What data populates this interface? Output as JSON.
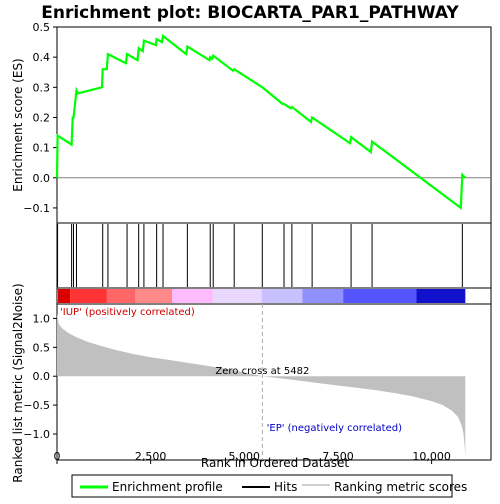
{
  "chart_data": [
    {
      "type": "line",
      "title": "Enrichment plot: BIOCARTA_PAR1_PATHWAY",
      "ylabel": "Enrichment score (ES)",
      "ylim": [
        -0.15,
        0.5
      ],
      "xlim": [
        0,
        11000
      ],
      "yticks": [
        "−0.1",
        "0.0",
        "0.1",
        "0.2",
        "0.3",
        "0.4",
        "0.5"
      ],
      "ytick_values": [
        -0.1,
        0.0,
        0.1,
        0.2,
        0.3,
        0.4,
        0.5
      ],
      "grid": false,
      "series": [
        {
          "name": "Enrichment profile",
          "color": "#00ff00",
          "x": [
            0,
            15,
            390,
            420,
            440,
            520,
            560,
            1200,
            1220,
            1330,
            1360,
            1840,
            1870,
            2150,
            2180,
            2290,
            2320,
            2640,
            2660,
            2800,
            2830,
            3450,
            3480,
            4070,
            4090,
            4140,
            4170,
            4700,
            4730,
            5480,
            6020,
            6060,
            6240,
            6270,
            6780,
            6810,
            7820,
            7850,
            8380,
            8410,
            10780,
            10820,
            10900
          ],
          "y": [
            0.0,
            0.14,
            0.11,
            0.2,
            0.2,
            0.29,
            0.28,
            0.3,
            0.36,
            0.36,
            0.41,
            0.38,
            0.41,
            0.39,
            0.43,
            0.42,
            0.455,
            0.44,
            0.46,
            0.45,
            0.47,
            0.41,
            0.435,
            0.39,
            0.4,
            0.395,
            0.405,
            0.355,
            0.36,
            0.3,
            0.245,
            0.245,
            0.23,
            0.235,
            0.185,
            0.2,
            0.115,
            0.135,
            0.085,
            0.12,
            -0.1,
            0.01,
            0.0
          ]
        }
      ]
    },
    {
      "type": "scatter",
      "name": "Hits",
      "hit_positions": [
        15,
        390,
        440,
        520,
        1220,
        1360,
        1870,
        2180,
        2320,
        2660,
        2830,
        3480,
        4090,
        4170,
        4730,
        5480,
        6060,
        6270,
        6810,
        7850,
        8410,
        10820
      ],
      "xlim": [
        0,
        11000
      ]
    },
    {
      "type": "heatmap",
      "name": "Ranked list colour bar",
      "colors": [
        "#dd0000",
        "#ff3333",
        "#ff6666",
        "#ff8888",
        "#ffbbff",
        "#e8d8ff",
        "#c8c0ff",
        "#9090ff",
        "#5555ff",
        "#1111cc"
      ]
    },
    {
      "type": "area",
      "xlabel": "Rank in Ordered Dataset",
      "ylabel": "Ranked list metric (Signal2Noise)",
      "ylim": [
        -1.45,
        1.25
      ],
      "xlim": [
        0,
        11000
      ],
      "xticks": [
        "0",
        "2,500",
        "5,000",
        "7,500",
        "10,000"
      ],
      "xtick_values": [
        0,
        2500,
        5000,
        7500,
        10000
      ],
      "yticks": [
        "−1.0",
        "−0.5",
        "0.0",
        "0.5",
        "1.0"
      ],
      "ytick_values": [
        -1.0,
        -0.5,
        0.0,
        0.5,
        1.0
      ],
      "series": [
        {
          "name": "Ranking metric scores",
          "color": "#c0c0c0",
          "x": [
            0,
            50,
            150,
            300,
            500,
            800,
            1200,
            1600,
            2000,
            2500,
            3000,
            3500,
            4000,
            4500,
            5000,
            5482,
            6000,
            6500,
            7000,
            7500,
            8000,
            8500,
            9000,
            9500,
            10000,
            10300,
            10550,
            10700,
            10800,
            10850,
            10880,
            10900
          ],
          "y": [
            1.08,
            0.9,
            0.82,
            0.75,
            0.68,
            0.6,
            0.52,
            0.45,
            0.39,
            0.33,
            0.28,
            0.23,
            0.18,
            0.13,
            0.07,
            0.0,
            -0.04,
            -0.08,
            -0.12,
            -0.16,
            -0.2,
            -0.24,
            -0.29,
            -0.35,
            -0.43,
            -0.5,
            -0.6,
            -0.7,
            -0.85,
            -1.0,
            -1.2,
            -1.4
          ]
        }
      ],
      "annotations": {
        "zero_cross": "Zero cross at 5482",
        "positive": "'IUP' (positively correlated)",
        "negative": "'EP' (negatively correlated)"
      }
    }
  ],
  "legend": {
    "items": [
      {
        "label": "Enrichment profile",
        "color": "#00ff00"
      },
      {
        "label": "Hits",
        "color": "#000000"
      },
      {
        "label": "Ranking metric scores",
        "color": "#c0c0c0"
      }
    ]
  }
}
